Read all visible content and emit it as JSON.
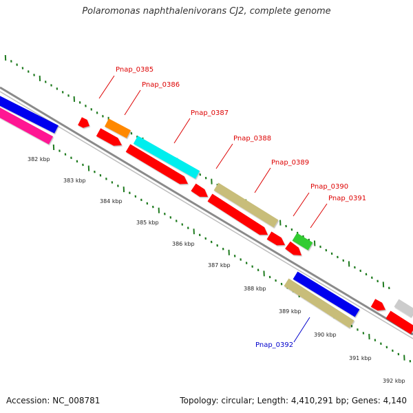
{
  "title": "Polaromonas naphthalenivorans CJ2, complete genome",
  "footer": {
    "accession": "Accession: NC_008781",
    "stats": "Topology: circular; Length: 4,410,291 bp; Genes: 4,140"
  },
  "colors": {
    "backbone": "#8a8a8a",
    "tick": "#1e7a1e",
    "label_forward": "#dd0000",
    "label_reverse": "#0000cc"
  },
  "ticks": {
    "labels": [
      "382 kbp",
      "383 kbp",
      "384 kbp",
      "385 kbp",
      "386 kbp",
      "387 kbp",
      "388 kbp",
      "389 kbp",
      "390 kbp",
      "391 kbp",
      "392 kbp"
    ]
  },
  "genes": [
    {
      "id": "Pnap_0385",
      "color": "#ff0000",
      "shape": "arrow"
    },
    {
      "id": "Pnap_0386",
      "color": "#ff8800",
      "shape": "bar"
    },
    {
      "id": "Pnap_0387",
      "color": "#00eeee",
      "shape": "bar"
    },
    {
      "id": "Pnap_0388",
      "color": "#c8bd7a",
      "shape": "bar"
    },
    {
      "id": "Pnap_0389",
      "color": "#ff0000",
      "shape": "arrow"
    },
    {
      "id": "Pnap_0390",
      "color": "#33cc33",
      "shape": "bar"
    },
    {
      "id": "Pnap_0391",
      "color": "#ff0000",
      "shape": "arrow"
    },
    {
      "id": "Pnap_0392",
      "color": "#c8bd7a",
      "shape": "bar"
    }
  ],
  "labels": [
    {
      "text": "Pnap_0385",
      "strand": "forward"
    },
    {
      "text": "Pnap_0386",
      "strand": "forward"
    },
    {
      "text": "Pnap_0387",
      "strand": "forward"
    },
    {
      "text": "Pnap_0388",
      "strand": "forward"
    },
    {
      "text": "Pnap_0389",
      "strand": "forward"
    },
    {
      "text": "Pnap_0390",
      "strand": "forward"
    },
    {
      "text": "Pnap_0391",
      "strand": "forward"
    },
    {
      "text": "Pnap_0392",
      "strand": "reverse"
    }
  ]
}
